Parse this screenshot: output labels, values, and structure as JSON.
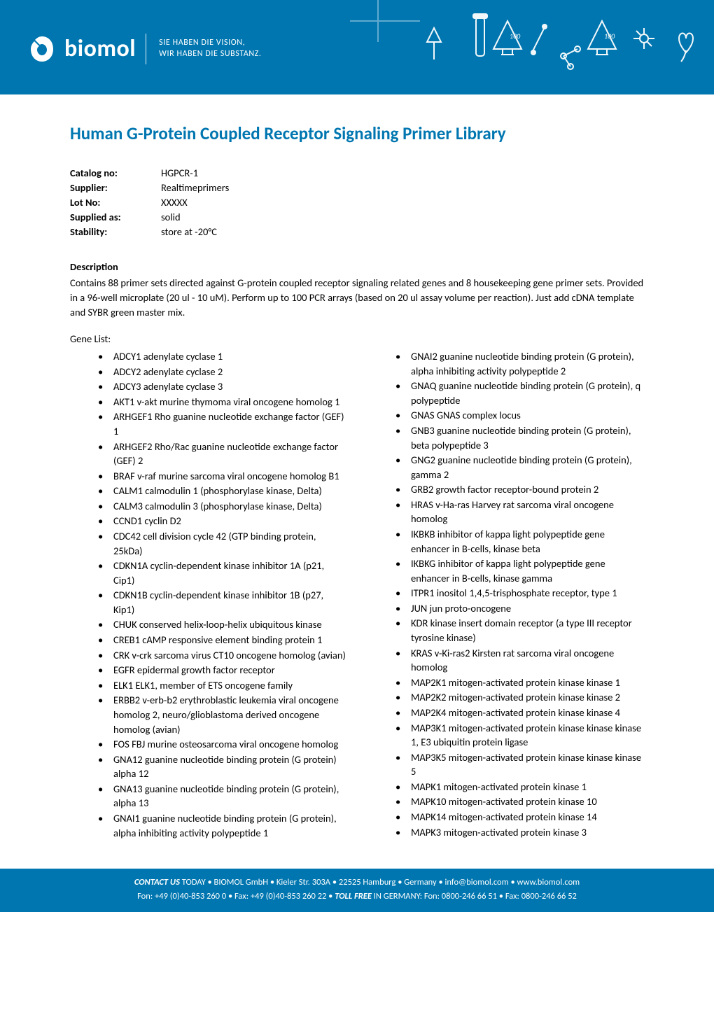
{
  "brand": {
    "name": "biomol",
    "tagline_line1": "SIE HABEN DIE VISION,",
    "tagline_line2": "WIR HABEN DIE SUBSTANZ."
  },
  "colors": {
    "primary": "#0076b0",
    "text": "#000000",
    "white": "#ffffff"
  },
  "title": "Human G-Protein Coupled Receptor Signaling Primer Library",
  "meta": {
    "catalog_no_label": "Catalog no:",
    "catalog_no": "HGPCR-1",
    "supplier_label": "Supplier:",
    "supplier": "Realtimeprimers",
    "lot_no_label": "Lot No:",
    "lot_no": "XXXXX",
    "supplied_as_label": "Supplied as:",
    "supplied_as": "solid",
    "stability_label": "Stability:",
    "stability": "store at -20°C"
  },
  "description_heading": "Description",
  "description": "Contains 88 primer sets directed against G-protein coupled receptor signaling related genes and 8 housekeeping gene primer sets. Provided in a 96-well microplate (20 ul - 10 uM). Perform up to 100 PCR arrays (based on 20 ul assay volume per reaction). Just add cDNA template and SYBR green master mix.",
  "gene_list_label": "Gene List:",
  "genes": [
    "ADCY1 adenylate cyclase 1",
    "ADCY2 adenylate cyclase 2",
    "ADCY3 adenylate cyclase 3",
    "AKT1 v-akt murine thymoma viral oncogene homolog 1",
    "ARHGEF1 Rho guanine nucleotide exchange factor (GEF) 1",
    "ARHGEF2 Rho/Rac guanine nucleotide exchange factor (GEF) 2",
    "BRAF v-raf murine sarcoma viral oncogene homolog B1",
    "CALM1 calmodulin 1 (phosphorylase kinase, Delta)",
    "CALM3 calmodulin 3 (phosphorylase kinase, Delta)",
    "CCND1 cyclin D2",
    "CDC42 cell division cycle 42 (GTP binding protein, 25kDa)",
    "CDKN1A cyclin-dependent kinase inhibitor 1A (p21, Cip1)",
    "CDKN1B cyclin-dependent kinase inhibitor 1B (p27, Kip1)",
    "CHUK conserved helix-loop-helix ubiquitous kinase",
    "CREB1 cAMP responsive element binding protein 1",
    "CRK v-crk sarcoma virus CT10 oncogene homolog (avian)",
    "EGFR epidermal growth factor receptor",
    "ELK1 ELK1, member of ETS oncogene family",
    "ERBB2 v-erb-b2 erythroblastic leukemia viral oncogene homolog 2, neuro/glioblastoma derived oncogene homolog (avian)",
    "FOS FBJ murine osteosarcoma viral oncogene homolog",
    "GNA12 guanine nucleotide binding protein (G protein) alpha 12",
    "GNA13 guanine nucleotide binding protein (G protein), alpha 13",
    "GNAI1 guanine nucleotide binding protein (G protein), alpha inhibiting activity polypeptide 1",
    "GNAI2 guanine nucleotide binding protein (G protein), alpha inhibiting activity polypeptide 2",
    "GNAQ guanine nucleotide binding protein (G protein), q polypeptide",
    "GNAS GNAS complex locus",
    "GNB3 guanine nucleotide binding protein (G protein), beta polypeptide 3",
    "GNG2 guanine nucleotide binding protein (G protein), gamma 2",
    "GRB2 growth factor receptor-bound protein 2",
    "HRAS v-Ha-ras Harvey rat sarcoma viral oncogene homolog",
    "IKBKB inhibitor of kappa light polypeptide gene enhancer in B-cells, kinase beta",
    "IKBKG inhibitor of kappa light polypeptide gene enhancer in B-cells, kinase gamma",
    "ITPR1 inositol 1,4,5-trisphosphate receptor, type 1",
    "JUN jun proto-oncogene",
    "KDR kinase insert domain receptor (a type III receptor tyrosine kinase)",
    "KRAS v-Ki-ras2 Kirsten rat sarcoma viral oncogene homolog",
    "MAP2K1 mitogen-activated protein kinase kinase 1",
    "MAP2K2 mitogen-activated protein kinase kinase 2",
    "MAP2K4 mitogen-activated protein kinase kinase 4",
    "MAP3K1 mitogen-activated protein kinase kinase kinase 1, E3 ubiquitin protein ligase",
    "MAP3K5 mitogen-activated protein kinase kinase kinase 5",
    "MAPK1 mitogen-activated protein kinase 1",
    "MAPK10 mitogen-activated protein kinase 10",
    "MAPK14 mitogen-activated protein kinase 14",
    "MAPK3 mitogen-activated protein kinase 3"
  ],
  "footer": {
    "line1_bold": "CONTACT US",
    "line1_rest": " TODAY • BIOMOL GmbH • Kieler Str. 303A • 22525 Hamburg • Germany • info@biomol.com • www.biomol.com",
    "line2_pre": "Fon: +49 (0)40-853 260 0 • Fax: +49 (0)40-853 260 22 • ",
    "line2_bold": "TOLL FREE",
    "line2_post": " IN GERMANY: Fon: 0800-246 66 51 • Fax: 0800-246 66 52"
  }
}
